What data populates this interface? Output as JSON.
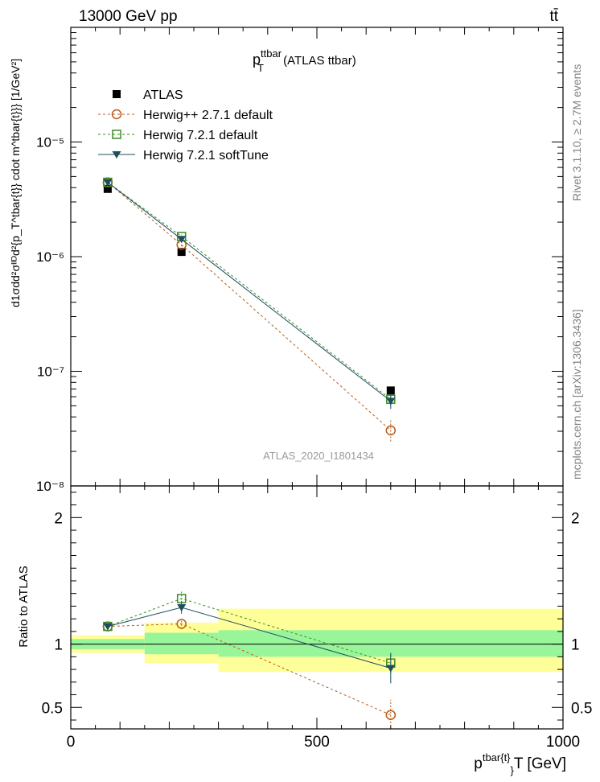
{
  "header": {
    "energy": "13000 GeV pp",
    "process": "tt̄"
  },
  "main_plot": {
    "title_main": "p",
    "title_sup": "ttbar",
    "title_sub": "T",
    "title_suffix": " (ATLAS ttbar)",
    "analysis_id": "ATLAS_2020_I1801434",
    "ylabel": "d1σdd²σᴵᴵᴰd²{p_T^tbar{t}} cdot m^tbar{t}}} [1/GeV²]"
  },
  "side_text": {
    "rivet": "Rivet 3.1.10, ≥ 2.7M events",
    "mcplots": "mcplots.cern.ch [arXiv:1306.3436]"
  },
  "ratio_plot": {
    "ylabel": "Ratio to ATLAS"
  },
  "colors": {
    "data": "#000000",
    "herwigpp": "#b85c1e",
    "herwig7_default": "#3c8c28",
    "herwig7_soft": "#1c4f5e",
    "band_inner": "#99f599",
    "band_outer": "#ffff99"
  },
  "chart_data": [
    {
      "type": "scatter",
      "scale": "log",
      "xlim": [
        0,
        1000
      ],
      "ylim": [
        1e-08,
        0.0001
      ],
      "xlabel": "p^{tbar{t}}_T [GeV]",
      "y_tick_labels": [
        "10⁻⁸",
        "10⁻⁷",
        "10⁻⁶",
        "10⁻⁵"
      ],
      "x": [
        75,
        225,
        650
      ],
      "x_bin_edges": [
        0,
        150,
        300,
        1000
      ],
      "legend_position": "top-left",
      "series": [
        {
          "name": "ATLAS",
          "marker": "filled-square",
          "values": [
            3.9e-06,
            1.1e-06,
            6.8e-08
          ]
        },
        {
          "name": "Herwig++ 2.7.1 default",
          "marker": "open-circle",
          "line": "dashed",
          "values": [
            4.45e-06,
            1.27e-06,
            3.05e-08
          ],
          "err_low": [
            5e-08,
            4e-08,
            6e-09
          ],
          "err_high": [
            5e-08,
            4e-08,
            7.5e-09
          ]
        },
        {
          "name": "Herwig 7.2.1 default",
          "marker": "open-square",
          "line": "dashed",
          "values": [
            4.45e-06,
            1.5e-06,
            5.7e-08
          ],
          "err_low": [
            5e-08,
            6e-08,
            6e-09
          ],
          "err_high": [
            5e-08,
            6e-08,
            6e-09
          ]
        },
        {
          "name": "Herwig 7.2.1 softTune",
          "marker": "filled-triangle-down",
          "line": "solid",
          "values": [
            4.45e-06,
            1.42e-06,
            5.5e-08
          ],
          "err_low": [
            5e-08,
            5e-08,
            8e-09
          ],
          "err_high": [
            5e-08,
            5e-08,
            8e-09
          ]
        }
      ]
    },
    {
      "type": "scatter",
      "xlim": [
        0,
        1000
      ],
      "ylim": [
        0.33,
        2.25
      ],
      "x_tick_labels": [
        "0",
        "500",
        "1000"
      ],
      "y_tick_labels": [
        "0.5",
        "1",
        "2"
      ],
      "x": [
        75,
        225,
        650
      ],
      "bands": [
        {
          "xmin": 0,
          "xmax": 150,
          "inner": [
            0.96,
            1.04
          ],
          "outer": [
            0.93,
            1.07
          ]
        },
        {
          "xmin": 150,
          "xmax": 300,
          "inner": [
            0.92,
            1.09
          ],
          "outer": [
            0.85,
            1.17
          ]
        },
        {
          "xmin": 300,
          "xmax": 1000,
          "inner": [
            0.9,
            1.11
          ],
          "outer": [
            0.78,
            1.28
          ]
        }
      ],
      "series": [
        {
          "name": "Herwig++ 2.7.1 default",
          "values": [
            1.14,
            1.16,
            0.44
          ],
          "err_low": [
            0.02,
            0.04,
            0.09
          ],
          "err_high": [
            0.02,
            0.04,
            0.12
          ]
        },
        {
          "name": "Herwig 7.2.1 default",
          "values": [
            1.14,
            1.36,
            0.85
          ],
          "err_low": [
            0.02,
            0.06,
            0.08
          ],
          "err_high": [
            0.02,
            0.06,
            0.08
          ]
        },
        {
          "name": "Herwig 7.2.1 softTune",
          "values": [
            1.14,
            1.29,
            0.81
          ],
          "err_low": [
            0.02,
            0.05,
            0.12
          ],
          "err_high": [
            0.02,
            0.05,
            0.12
          ]
        }
      ]
    }
  ]
}
